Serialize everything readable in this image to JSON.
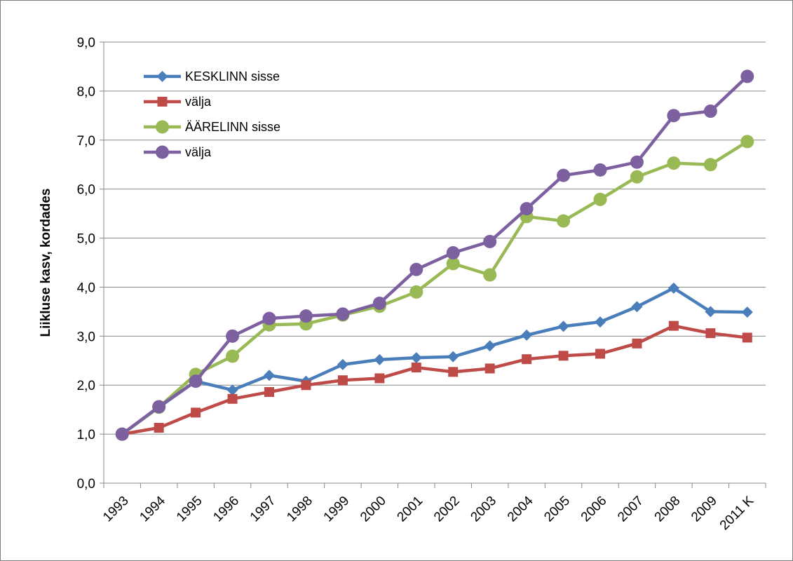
{
  "chart_data": {
    "type": "line",
    "title": "",
    "xlabel": "",
    "ylabel": "Liikluse kasv, kordades",
    "ylim": [
      0,
      9
    ],
    "yticks": [
      "0,0",
      "1,0",
      "2,0",
      "3,0",
      "4,0",
      "5,0",
      "6,0",
      "7,0",
      "8,0",
      "9,0"
    ],
    "grid": "horizontal",
    "legend_position": "top-left",
    "categories": [
      "1993",
      "1994",
      "1995",
      "1996",
      "1997",
      "1998",
      "1999",
      "2000",
      "2001",
      "2002",
      "2003",
      "2004",
      "2005",
      "2006",
      "2007",
      "2008",
      "2009",
      "2011 K"
    ],
    "series": [
      {
        "name": "KESKLINN sisse",
        "color": "#4a7ebb",
        "marker": "diamond",
        "values": [
          1.0,
          1.55,
          2.08,
          1.9,
          2.2,
          2.08,
          2.42,
          2.52,
          2.56,
          2.58,
          2.8,
          3.02,
          3.2,
          3.29,
          3.6,
          3.98,
          3.5,
          3.49
        ]
      },
      {
        "name": "välja",
        "color": "#be4b48",
        "marker": "square",
        "values": [
          1.0,
          1.13,
          1.44,
          1.72,
          1.86,
          2.0,
          2.1,
          2.14,
          2.36,
          2.27,
          2.34,
          2.53,
          2.6,
          2.64,
          2.85,
          3.21,
          3.06,
          2.97
        ]
      },
      {
        "name": "ÄÄRELINN sisse",
        "color": "#98b954",
        "marker": "circle",
        "values": [
          1.0,
          1.55,
          2.22,
          2.59,
          3.23,
          3.25,
          3.43,
          3.61,
          3.9,
          4.48,
          4.25,
          5.44,
          5.35,
          5.79,
          6.25,
          6.53,
          6.5,
          6.97
        ]
      },
      {
        "name": "välja",
        "color": "#7d60a0",
        "marker": "circle",
        "values": [
          1.0,
          1.56,
          2.08,
          3.0,
          3.36,
          3.41,
          3.45,
          3.67,
          4.36,
          4.7,
          4.93,
          5.6,
          6.28,
          6.39,
          6.55,
          7.5,
          7.59,
          8.3
        ]
      }
    ]
  }
}
